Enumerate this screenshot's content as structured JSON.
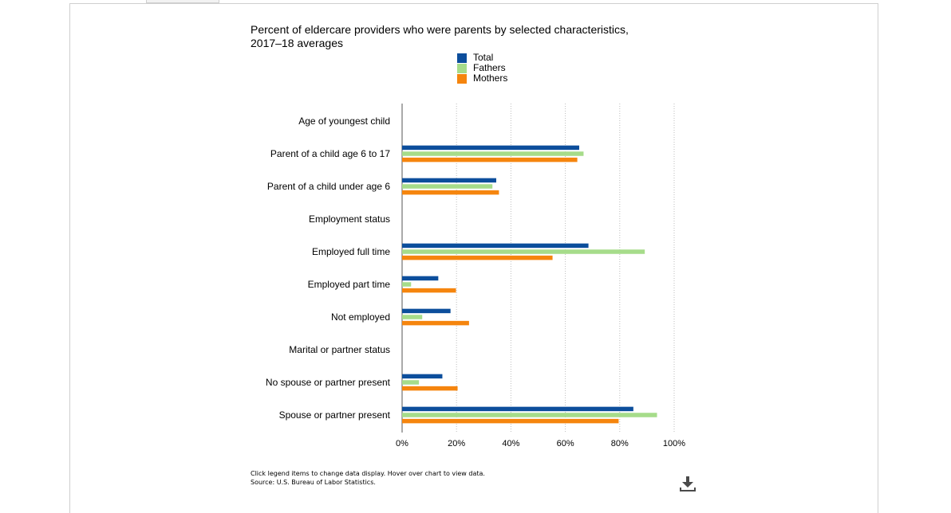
{
  "chart_data": {
    "type": "bar",
    "orientation": "horizontal",
    "title": "Percent of eldercare providers who were parents by selected characteristics, 2017–18 averages",
    "title_lines": [
      "Percent of eldercare providers who were parents by selected characteristics,",
      "2017–18 averages"
    ],
    "categories": [
      "Age of youngest child",
      "Parent of a child age 6 to 17",
      "Parent of a child under age 6",
      "Employment status",
      "Employed full time",
      "Employed part time",
      "Not employed",
      "Marital or partner status",
      "No spouse or partner present",
      "Spouse or partner present"
    ],
    "series": [
      {
        "name": "Total",
        "color": "#0c4e9c",
        "values": [
          null,
          65.1,
          34.6,
          null,
          68.5,
          13.3,
          17.8,
          null,
          14.8,
          85.0
        ]
      },
      {
        "name": "Fathers",
        "color": "#a6dc8a",
        "values": [
          null,
          66.7,
          33.2,
          null,
          89.2,
          3.3,
          7.4,
          null,
          6.2,
          93.7
        ]
      },
      {
        "name": "Mothers",
        "color": "#f5850e",
        "values": [
          null,
          64.4,
          35.6,
          null,
          55.3,
          19.8,
          24.6,
          null,
          20.4,
          79.6
        ]
      }
    ],
    "xlim": [
      0,
      100
    ],
    "x_ticks": [
      0,
      20,
      40,
      60,
      80,
      100
    ],
    "x_tick_labels": [
      "0%",
      "20%",
      "40%",
      "60%",
      "80%",
      "100%"
    ],
    "grid": "vertical dotted",
    "legend_position": "top"
  },
  "footnote": {
    "line1": "Click legend items to change data display. Hover over chart to view data.",
    "line2": "Source: U.S. Bureau of Labor Statistics."
  },
  "icons": {
    "download": "download-icon"
  }
}
